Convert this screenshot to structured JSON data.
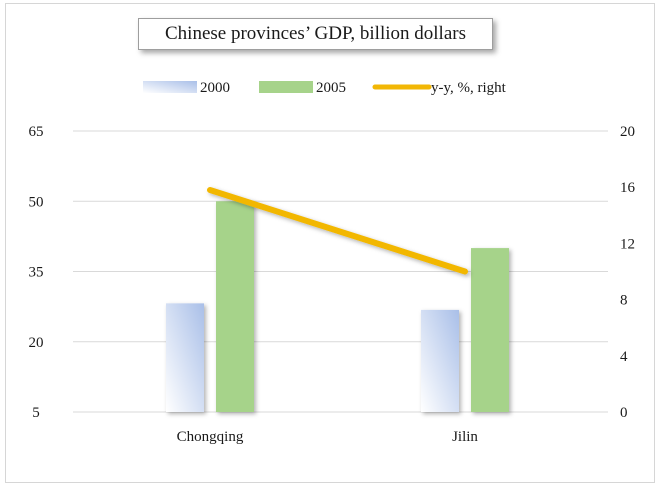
{
  "chart_data": {
    "type": "bar+line",
    "title": "Chinese provinces’ GDP, billion dollars",
    "categories": [
      "Chongqing",
      "Jilin"
    ],
    "series": [
      {
        "name": "2000",
        "kind": "bar",
        "axis": "left",
        "values": [
          28.2,
          26.8
        ],
        "color": "#a9bfe8"
      },
      {
        "name": "2005",
        "kind": "bar",
        "axis": "left",
        "values": [
          50.0,
          40.0
        ],
        "color": "#a6d38a"
      },
      {
        "name": "y-y, %, right",
        "kind": "line",
        "axis": "right",
        "values": [
          15.8,
          10.0
        ],
        "color": "#f2b705"
      }
    ],
    "left_axis": {
      "ylim": [
        5,
        65
      ],
      "ticks": [
        "65",
        "50",
        "35",
        "20",
        "5"
      ]
    },
    "right_axis": {
      "ylim": [
        0,
        20
      ],
      "ticks": [
        "20",
        "16",
        "12",
        "8",
        "4",
        "0"
      ]
    },
    "legend_position": "top-center",
    "grid": true
  }
}
